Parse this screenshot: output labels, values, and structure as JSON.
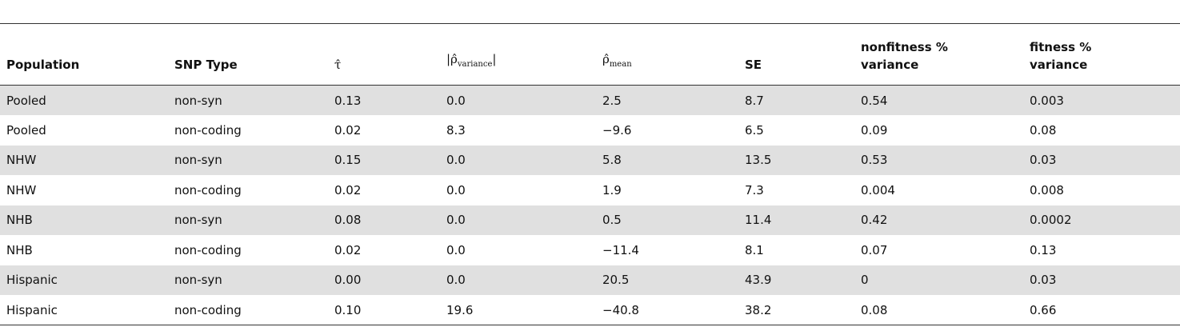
{
  "table": {
    "headers": [
      "Population",
      "SNP Type",
      {
        "pre": "τ̂"
      },
      {
        "pre": "|ρ̂",
        "sub": "variance",
        "post": "|"
      },
      {
        "pre": "ρ̂",
        "sub": "mean"
      },
      "SE",
      "nonfitness % variance",
      "fitness % variance"
    ],
    "rows": [
      [
        "Pooled",
        "non-syn",
        "0.13",
        "0.0",
        "2.5",
        "8.7",
        "0.54",
        "0.003"
      ],
      [
        "Pooled",
        "non-coding",
        "0.02",
        "8.3",
        "−9.6",
        "6.5",
        "0.09",
        "0.08"
      ],
      [
        "NHW",
        "non-syn",
        "0.15",
        "0.0",
        "5.8",
        "13.5",
        "0.53",
        "0.03"
      ],
      [
        "NHW",
        "non-coding",
        "0.02",
        "0.0",
        "1.9",
        "7.3",
        "0.004",
        "0.008"
      ],
      [
        "NHB",
        "non-syn",
        "0.08",
        "0.0",
        "0.5",
        "11.4",
        "0.42",
        "0.0002"
      ],
      [
        "NHB",
        "non-coding",
        "0.02",
        "0.0",
        "−11.4",
        "8.1",
        "0.07",
        "0.13"
      ],
      [
        "Hispanic",
        "non-syn",
        "0.00",
        "0.0",
        "20.5",
        "43.9",
        "0",
        "0.03"
      ],
      [
        "Hispanic",
        "non-coding",
        "0.10",
        "19.6",
        "−40.8",
        "38.2",
        "0.08",
        "0.66"
      ]
    ]
  }
}
